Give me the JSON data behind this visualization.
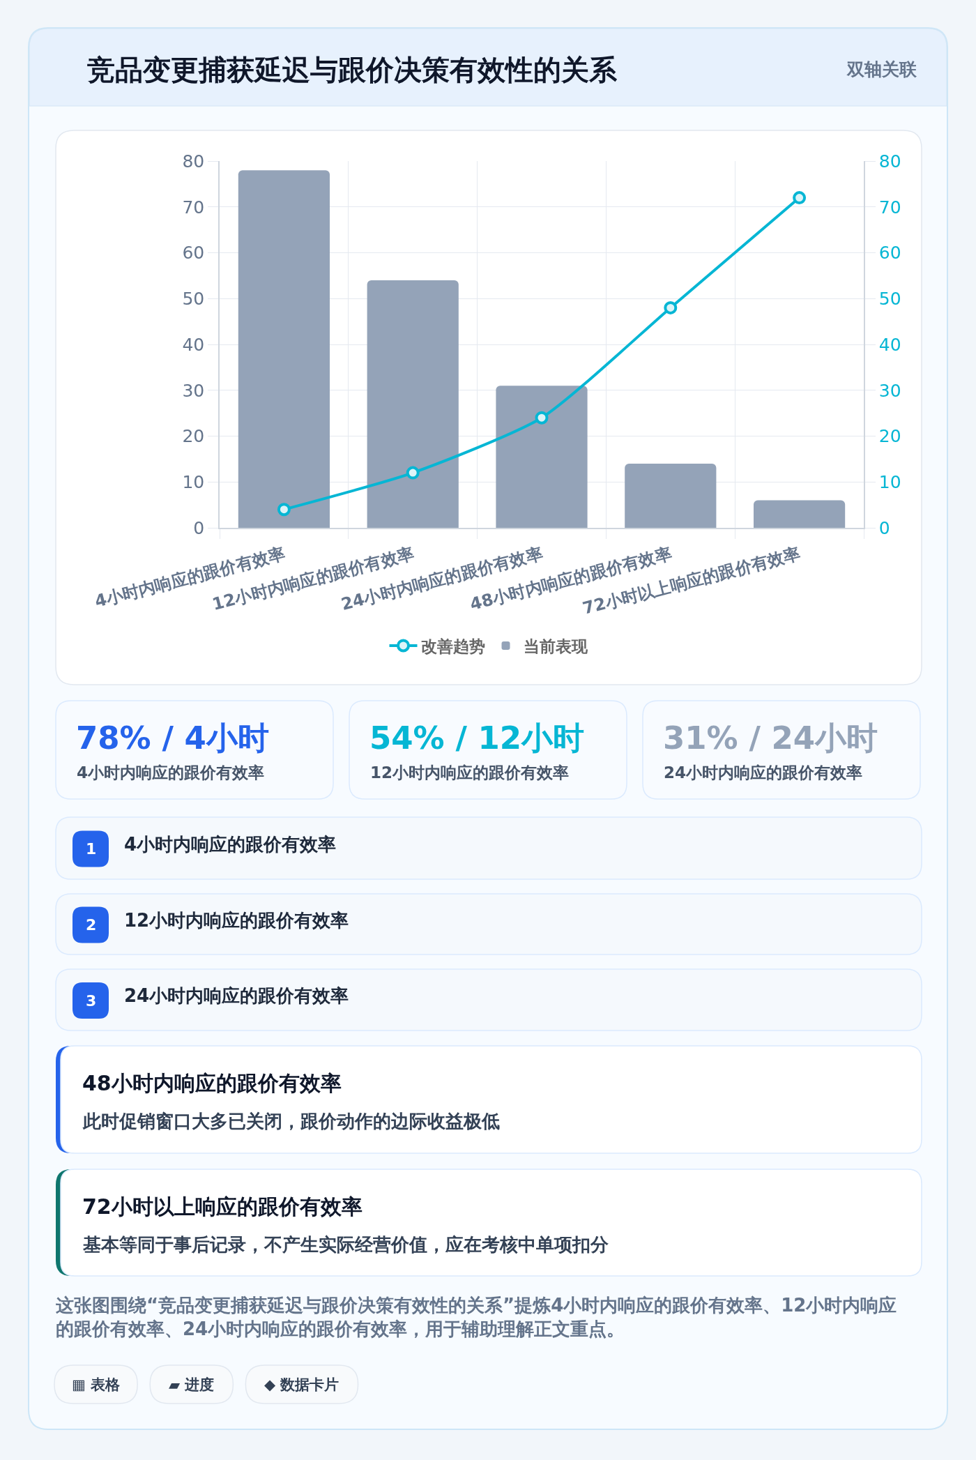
{
  "chart_data": {
    "type": "bar",
    "title": "竞品变更捕获延迟与跟价决策有效性的关系",
    "subtitle": "双轴关联",
    "categories": [
      "4小时内响应的跟价有效率",
      "12小时内响应的跟价有效率",
      "24小时内响应的跟价有效率",
      "48小时内响应的跟价有效率",
      "72小时以上响应的跟价有效率"
    ],
    "series": [
      {
        "name": "改善趋势",
        "type": "line",
        "axis": "y2",
        "color": "#06b6d4",
        "values": [
          4,
          12,
          24,
          48,
          72
        ]
      },
      {
        "name": "当前表现",
        "color": "#94a3b8",
        "values": [
          78,
          54,
          31,
          14,
          6
        ]
      }
    ],
    "ylim": [
      0,
      80
    ],
    "yticks": [
      0,
      10,
      20,
      30,
      40,
      50,
      60,
      70,
      80
    ],
    "y2lim": [
      0,
      80
    ],
    "y2ticks": [
      0,
      10,
      20,
      30,
      40,
      50,
      60,
      70,
      80
    ],
    "grid": true,
    "legend": "bottom",
    "marker": "circle",
    "line_style": "solid",
    "annotations": [
      "78% / 4小时",
      "4小时内响应的跟价有效率",
      "54% / 12小时",
      "12小时内响应的跟价有效率",
      "31% / 24小时",
      "24小时内响应的跟价有效率",
      "1",
      "4小时内响应的跟价有效率",
      "2",
      "12小时内响应的跟价有效率",
      "3",
      "24小时内响应的跟价有效率",
      "48小时内响应的跟价有效率",
      "此时促销窗口大多已关闭，跟价动作的边际收益极低",
      "72小时以上响应的跟价有效率",
      "基本等同于事后记录，不产生实际经营价值，应在考核中单项扣分",
      "这张图围绕“竞品变更捕获延迟与跟价决策有效性的关系”提炼4小时内响应的跟价有效率、12小时内响应的跟价有效率、24小时内响应的跟价有效率，用于辅助理解正文重点。",
      "▦ 表格",
      "▰ 进度",
      "◆ 数据卡片"
    ]
  }
}
